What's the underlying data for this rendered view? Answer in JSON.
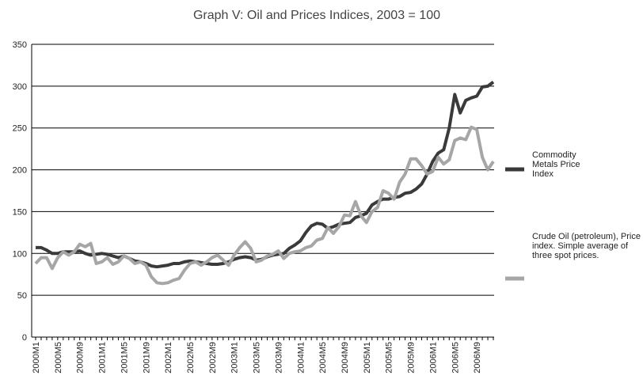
{
  "chart_data": {
    "type": "line",
    "title": "Graph V: Oil and Prices Indices, 2003 = 100",
    "categories": [
      "2000M1",
      null,
      null,
      null,
      "2000M5",
      null,
      null,
      null,
      "2000M9",
      null,
      null,
      null,
      "2001M1",
      null,
      null,
      null,
      "2001M5",
      null,
      null,
      null,
      "2001M9",
      null,
      null,
      null,
      "2002M1",
      null,
      null,
      null,
      "2002M5",
      null,
      null,
      null,
      "2002M9",
      null,
      null,
      null,
      "2003M1",
      null,
      null,
      null,
      "2003M5",
      null,
      null,
      null,
      "2003M9",
      null,
      null,
      null,
      "2004M1",
      null,
      null,
      null,
      "2004M5",
      null,
      null,
      null,
      "2004M9",
      null,
      null,
      null,
      "2005M1",
      null,
      null,
      null,
      "2005M5",
      null,
      null,
      null,
      "2005M9",
      null,
      null,
      null,
      "2006M1",
      null,
      null,
      null,
      "2006M5",
      null,
      null,
      null,
      "2006M9",
      null,
      null,
      null
    ],
    "series": [
      {
        "name": "Commodity Metals Price Index",
        "color": "#3a3a3a",
        "values": [
          107,
          107,
          104,
          100,
          100,
          102,
          102,
          102,
          103,
          100,
          98,
          99,
          100,
          99,
          97,
          95,
          97,
          94,
          91,
          90,
          88,
          85,
          84,
          85,
          86,
          88,
          88,
          90,
          91,
          90,
          89,
          88,
          87,
          87,
          88,
          90,
          93,
          95,
          96,
          95,
          92,
          93,
          96,
          98,
          99,
          100,
          106,
          110,
          115,
          125,
          133,
          136,
          135,
          130,
          132,
          135,
          136,
          137,
          143,
          145,
          148,
          158,
          162,
          165,
          165,
          167,
          168,
          172,
          173,
          177,
          183,
          195,
          210,
          220,
          224,
          250,
          290,
          268,
          283,
          286,
          288,
          299,
          300,
          305
        ]
      },
      {
        "name": "Crude Oil (petroleum), Price index. Simple average of three spot prices.",
        "color": "#a6a6a6",
        "values": [
          88,
          95,
          95,
          82,
          95,
          102,
          98,
          102,
          111,
          108,
          112,
          88,
          90,
          95,
          87,
          90,
          97,
          94,
          88,
          90,
          86,
          72,
          65,
          64,
          65,
          68,
          70,
          80,
          88,
          90,
          86,
          90,
          95,
          98,
          92,
          86,
          98,
          107,
          114,
          106,
          90,
          92,
          97,
          99,
          103,
          94,
          100,
          102,
          103,
          107,
          109,
          116,
          118,
          131,
          124,
          132,
          146,
          145,
          162,
          145,
          137,
          150,
          155,
          175,
          172,
          165,
          185,
          195,
          213,
          213,
          205,
          195,
          198,
          215,
          207,
          212,
          235,
          238,
          236,
          251,
          248,
          215,
          200,
          210
        ]
      }
    ],
    "ylim": [
      0,
      350
    ],
    "yticks": [
      0,
      50,
      100,
      150,
      200,
      250,
      300,
      350
    ],
    "grid": true
  }
}
